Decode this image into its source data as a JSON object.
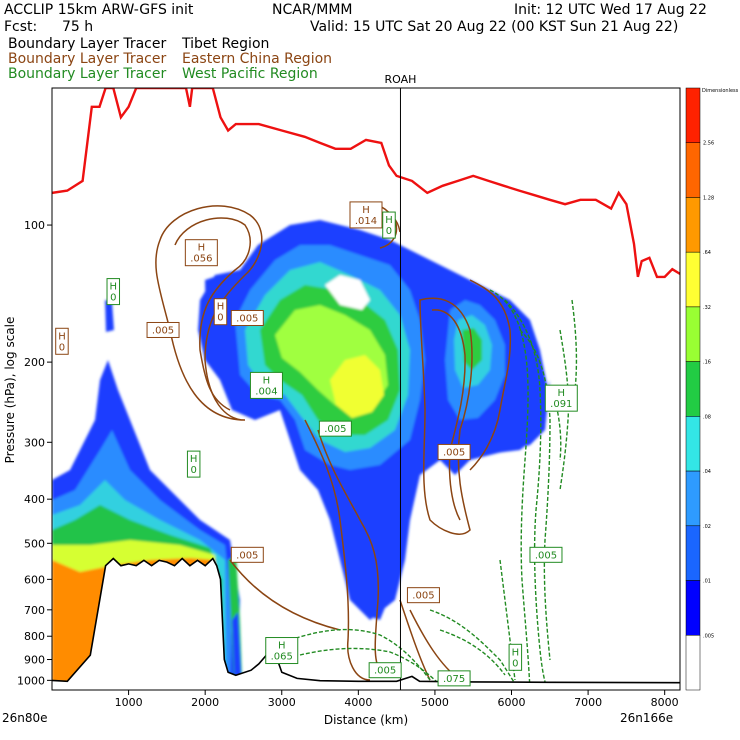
{
  "header": {
    "line1_left": "ACCLIP 15km ARW-GFS init",
    "line1_mid": "NCAR/MMM",
    "line1_right": "Init: 12 UTC Wed 17 Aug 22",
    "line2_left": "Fcst:",
    "line2_hours": "75 h",
    "line2_right": "Valid: 15 UTC Sat 20 Aug 22 (00 KST Sun 21 Aug 22)",
    "tracers": [
      {
        "label": "Boundary Layer Tracer",
        "region": "Tibet Region",
        "color": "#000000"
      },
      {
        "label": "Boundary Layer Tracer",
        "region": "Eastern China Region",
        "color": "#8B4513"
      },
      {
        "label": "Boundary Layer Tracer",
        "region": "West Pacific Region",
        "color": "#228B22"
      }
    ]
  },
  "chart_data": {
    "type": "cross-section",
    "station_marker": {
      "label": "ROAH",
      "x": 4550
    },
    "xlabel": "Distance (km)",
    "ylabel": "Pressure (hPa), log scale",
    "x_left_label": "26n80e",
    "x_right_label": "26n166e",
    "xlim": [
      0,
      8200
    ],
    "ylim": [
      1050,
      50
    ],
    "y_log": true,
    "x_ticks": [
      1000,
      2000,
      3000,
      4000,
      5000,
      6000,
      7000,
      8000
    ],
    "y_ticks": [
      100,
      200,
      300,
      400,
      500,
      600,
      700,
      800,
      900,
      1000
    ],
    "colorbar": {
      "label": "Dimensionless",
      "levels": [
        ".005",
        ".01",
        ".02",
        ".04",
        ".08",
        ".16",
        ".32",
        ".64",
        "1.28",
        "2.56"
      ],
      "colors": [
        "#ffffff",
        "#0000ff",
        "#1a66ff",
        "#2e9bff",
        "#33e6e6",
        "#22cc44",
        "#99ff33",
        "#ffff33",
        "#ff9900",
        "#ff6600",
        "#ff2200"
      ]
    },
    "tropopause": [
      [
        0,
        85
      ],
      [
        200,
        84
      ],
      [
        400,
        80
      ],
      [
        520,
        55
      ],
      [
        620,
        55
      ],
      [
        700,
        50
      ],
      [
        800,
        50
      ],
      [
        900,
        58
      ],
      [
        1000,
        55
      ],
      [
        1100,
        50
      ],
      [
        1500,
        50
      ],
      [
        1750,
        50
      ],
      [
        1800,
        55
      ],
      [
        1830,
        50
      ],
      [
        2100,
        50
      ],
      [
        2200,
        58
      ],
      [
        2300,
        62
      ],
      [
        2400,
        60
      ],
      [
        2700,
        60
      ],
      [
        3000,
        62
      ],
      [
        3300,
        64
      ],
      [
        3500,
        66
      ],
      [
        3700,
        68
      ],
      [
        3900,
        68
      ],
      [
        4100,
        65
      ],
      [
        4300,
        66
      ],
      [
        4400,
        74
      ],
      [
        4500,
        78
      ],
      [
        4700,
        80
      ],
      [
        4900,
        85
      ],
      [
        5100,
        82
      ],
      [
        5300,
        80
      ],
      [
        5500,
        78
      ],
      [
        5700,
        80
      ],
      [
        5900,
        82
      ],
      [
        6100,
        84
      ],
      [
        6300,
        86
      ],
      [
        6500,
        88
      ],
      [
        6700,
        90
      ],
      [
        6900,
        88
      ],
      [
        7100,
        88
      ],
      [
        7300,
        92
      ],
      [
        7400,
        85
      ],
      [
        7500,
        90
      ],
      [
        7600,
        110
      ],
      [
        7650,
        130
      ],
      [
        7700,
        120
      ],
      [
        7800,
        118
      ],
      [
        7900,
        130
      ],
      [
        8000,
        130
      ],
      [
        8100,
        125
      ],
      [
        8200,
        128
      ]
    ],
    "terrain": [
      [
        0,
        1000
      ],
      [
        200,
        1005
      ],
      [
        500,
        880
      ],
      [
        700,
        560
      ],
      [
        800,
        540
      ],
      [
        900,
        560
      ],
      [
        1000,
        555
      ],
      [
        1100,
        560
      ],
      [
        1200,
        545
      ],
      [
        1300,
        560
      ],
      [
        1400,
        545
      ],
      [
        1500,
        550
      ],
      [
        1600,
        560
      ],
      [
        1700,
        540
      ],
      [
        1800,
        560
      ],
      [
        1900,
        545
      ],
      [
        2000,
        560
      ],
      [
        2100,
        540
      ],
      [
        2150,
        560
      ],
      [
        2200,
        600
      ],
      [
        2250,
        900
      ],
      [
        2300,
        960
      ],
      [
        2400,
        975
      ],
      [
        2600,
        950
      ],
      [
        2700,
        920
      ],
      [
        2800,
        880
      ],
      [
        2900,
        860
      ],
      [
        3000,
        960
      ],
      [
        3200,
        990
      ],
      [
        3500,
        1002
      ],
      [
        4000,
        1005
      ],
      [
        4500,
        1005
      ],
      [
        4700,
        980
      ],
      [
        4800,
        1005
      ],
      [
        5500,
        1008
      ],
      [
        6500,
        1010
      ],
      [
        8200,
        1012
      ]
    ],
    "labels": [
      {
        "text": "H",
        "sub": "0",
        "x": 800,
        "p": 140,
        "color": "green"
      },
      {
        "text": "H",
        "sub": "0",
        "x": 130,
        "p": 180,
        "color": "brown"
      },
      {
        "text": "H",
        "sub": ".056",
        "x": 1950,
        "p": 115,
        "color": "brown"
      },
      {
        "text": ".005",
        "x": 1450,
        "p": 170,
        "color": "brown"
      },
      {
        "text": "H",
        "sub": "0",
        "x": 2200,
        "p": 155,
        "color": "brown"
      },
      {
        "text": ".005",
        "x": 2550,
        "p": 160,
        "color": "brown"
      },
      {
        "text": "H",
        "sub": ".004",
        "x": 2800,
        "p": 225,
        "color": "green"
      },
      {
        "text": "H",
        "sub": ".014",
        "x": 4100,
        "p": 95,
        "color": "brown"
      },
      {
        "text": "H",
        "sub": "0",
        "x": 4400,
        "p": 100,
        "color": "green"
      },
      {
        "text": ".005",
        "x": 3700,
        "p": 280,
        "color": "green"
      },
      {
        "text": "H",
        "sub": "0",
        "x": 1850,
        "p": 335,
        "color": "green"
      },
      {
        "text": "H",
        "sub": ".065",
        "x": 3000,
        "p": 860,
        "color": "green"
      },
      {
        "text": ".005",
        "x": 2550,
        "p": 530,
        "color": "brown"
      },
      {
        "text": ".005",
        "x": 4850,
        "p": 650,
        "color": "brown"
      },
      {
        "text": ".005",
        "x": 4350,
        "p": 950,
        "color": "green"
      },
      {
        "text": "H",
        "sub": ".091",
        "x": 6650,
        "p": 240,
        "color": "green"
      },
      {
        "text": ".005",
        "x": 6450,
        "p": 530,
        "color": "green"
      },
      {
        "text": "H",
        "sub": "0",
        "x": 6050,
        "p": 890,
        "color": "green"
      },
      {
        "text": ".005",
        "x": 5250,
        "p": 315,
        "color": "brown"
      },
      {
        "text": ".075",
        "x": 5250,
        "p": 990,
        "color": "green"
      }
    ]
  }
}
